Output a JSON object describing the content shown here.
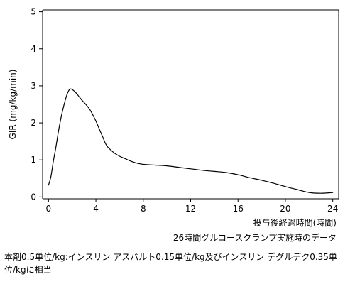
{
  "chart_data": {
    "type": "line",
    "xlabel": "投与後経過時間(時間)",
    "ylabel": "GIR (mg/kg/min)",
    "xlim": [
      -0.5,
      24.5
    ],
    "ylim": [
      -0.05,
      5.05
    ],
    "xticks": [
      0,
      4,
      8,
      12,
      16,
      20,
      24
    ],
    "yticks": [
      0,
      1,
      2,
      3,
      4,
      5
    ],
    "grid": false,
    "series": [
      {
        "color": "#000000",
        "x": [
          0,
          0.2,
          0.4,
          0.6,
          0.8,
          1.0,
          1.2,
          1.4,
          1.6,
          1.8,
          2.0,
          2.2,
          2.4,
          2.6,
          2.8,
          3.0,
          3.2,
          3.4,
          3.6,
          3.8,
          4.0,
          4.2,
          4.4,
          4.6,
          4.8,
          5.0,
          5.5,
          6.0,
          6.5,
          7.0,
          7.5,
          8.0,
          9.0,
          10.0,
          11.0,
          12.0,
          13.0,
          14.0,
          15.0,
          16.0,
          17.0,
          18.0,
          19.0,
          20.0,
          21.0,
          22.0,
          23.0,
          24.0
        ],
        "y": [
          0.32,
          0.55,
          0.95,
          1.3,
          1.7,
          2.05,
          2.35,
          2.6,
          2.8,
          2.91,
          2.9,
          2.85,
          2.78,
          2.7,
          2.62,
          2.55,
          2.48,
          2.4,
          2.3,
          2.18,
          2.05,
          1.9,
          1.75,
          1.6,
          1.45,
          1.35,
          1.2,
          1.1,
          1.03,
          0.96,
          0.91,
          0.88,
          0.86,
          0.84,
          0.8,
          0.76,
          0.72,
          0.69,
          0.66,
          0.6,
          0.52,
          0.45,
          0.37,
          0.28,
          0.2,
          0.12,
          0.1,
          0.12
        ]
      }
    ]
  },
  "annotations": {
    "condition": "26時間グルコースクランプ実施時のデータ",
    "footnote": "本剤0.5単位/kg:インスリン アスパルト0.15単位/kg及びインスリン デグルデク0.35単位/kgに相当"
  }
}
